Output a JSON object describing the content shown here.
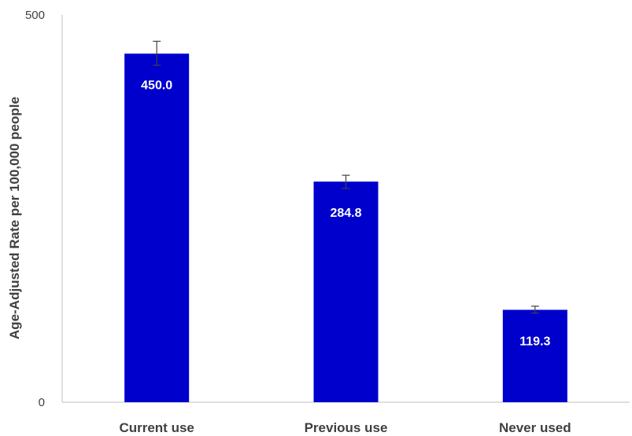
{
  "chart_data": {
    "type": "bar",
    "title": "",
    "xlabel": "",
    "ylabel": "Age-Adjusted Rate per 100,000 people",
    "categories": [
      "Current use",
      "Previous use",
      "Never used"
    ],
    "values": [
      450.0,
      284.8,
      119.3
    ],
    "value_labels": [
      "450.0",
      "284.8",
      "119.3"
    ],
    "error_bars": [
      {
        "low": 435,
        "high": 466
      },
      {
        "low": 276,
        "high": 293
      },
      {
        "low": 115,
        "high": 124
      }
    ],
    "ylim": [
      0,
      500
    ],
    "y_ticks": [
      0,
      500
    ],
    "y_tick_labels": [
      "0",
      "500"
    ],
    "grid": false,
    "legend": "none",
    "colors": {
      "bar": "#0000CC",
      "axis": "#BFBFBF",
      "error_bar": "#404040",
      "text": "#404040",
      "data_label": "#FFFFFF"
    }
  }
}
